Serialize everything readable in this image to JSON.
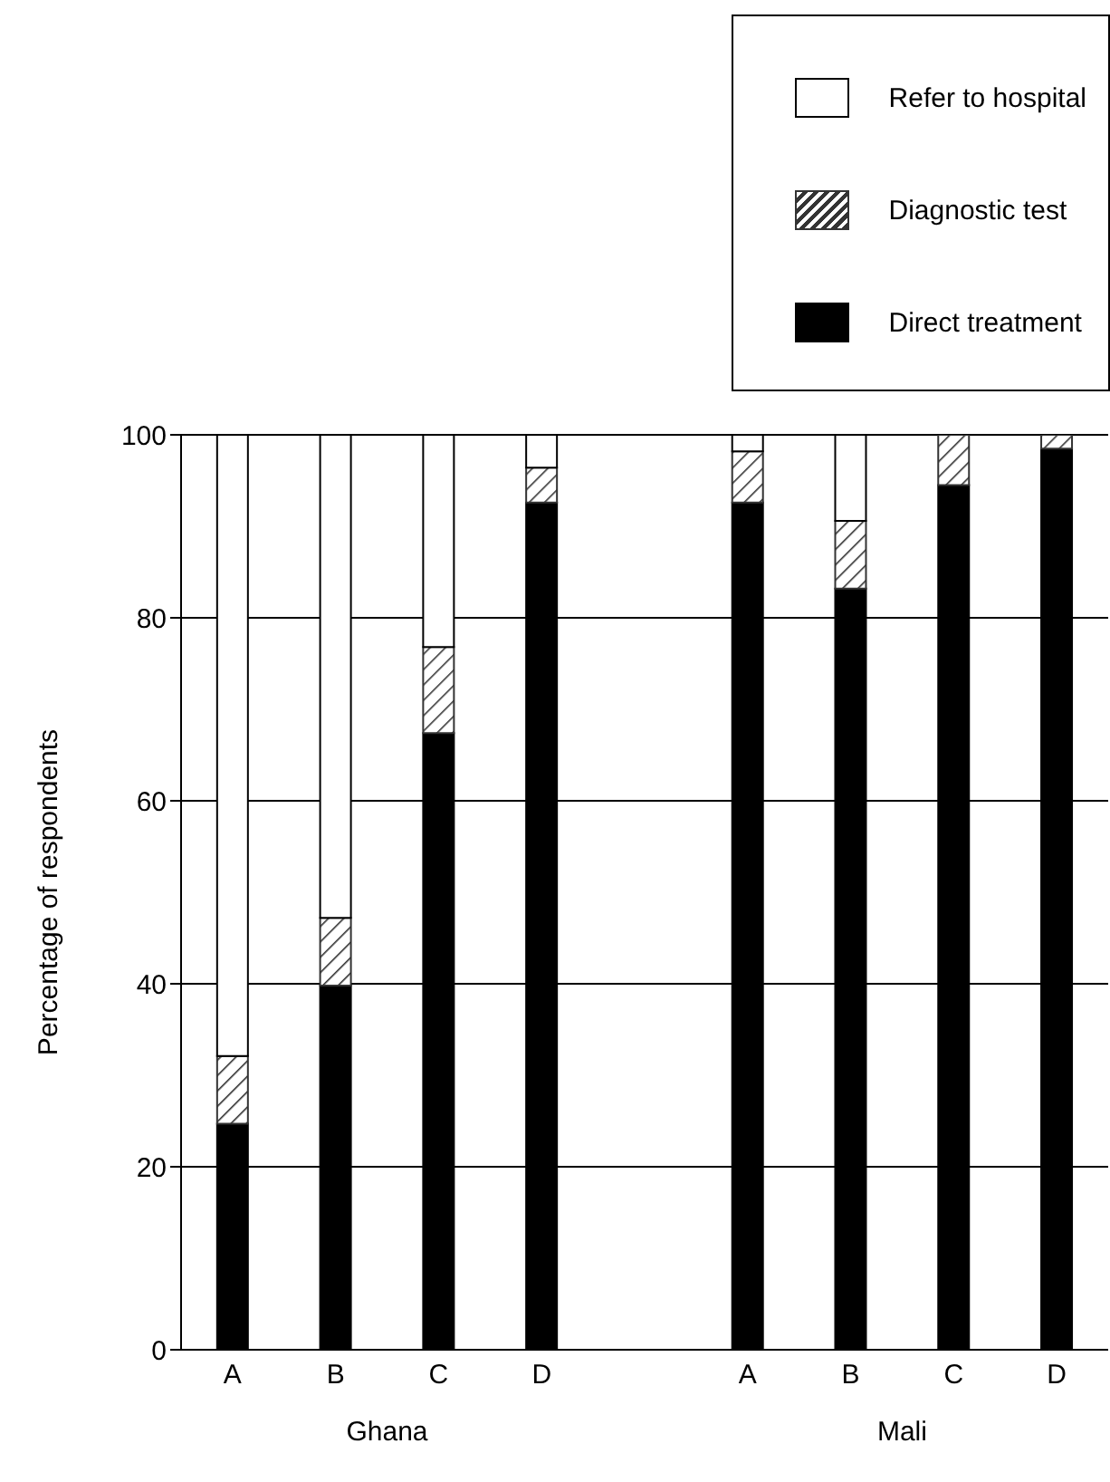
{
  "chart_data": {
    "type": "bar",
    "stacked": true,
    "ylabel": "Percentage of respondents",
    "categories": [
      "A",
      "B",
      "C",
      "D",
      null,
      "A",
      "B",
      "C",
      "D"
    ],
    "series": [
      {
        "name": "Direct treatment",
        "color": "#000000",
        "values": [
          24.7,
          39.8,
          67.4,
          92.6,
          null,
          92.6,
          83.2,
          94.5,
          98.5
        ]
      },
      {
        "name": "Diagnostic test",
        "color": "#333333",
        "values": [
          7.4,
          7.4,
          9.4,
          3.8,
          null,
          5.6,
          7.4,
          5.5,
          1.5
        ]
      },
      {
        "name": "Refer to hospital",
        "color": "#ffffff",
        "values": [
          67.9,
          52.8,
          23.2,
          3.6,
          null,
          1.8,
          9.4,
          0,
          0
        ]
      }
    ],
    "ylim": [
      0,
      100
    ],
    "yticks": [
      0,
      20,
      40,
      60,
      80,
      100
    ],
    "grid": "y",
    "legend": "top right",
    "annotations": [
      "Ghana",
      "Mali"
    ]
  }
}
